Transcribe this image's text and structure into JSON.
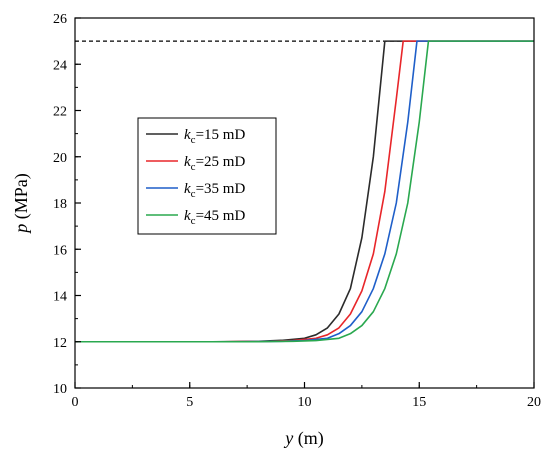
{
  "chart_data": {
    "type": "line",
    "xlabel": {
      "var": "y",
      "unit": " (m)"
    },
    "ylabel": {
      "var": "p",
      "unit": " (MPa)"
    },
    "xlim": [
      0,
      20
    ],
    "ylim": [
      10,
      26
    ],
    "xticks": [
      0,
      5,
      10,
      15,
      20
    ],
    "yticks": [
      10,
      12,
      14,
      16,
      18,
      20,
      22,
      24,
      26
    ],
    "grid": false,
    "legend_position": "left-center",
    "reference_line": {
      "y": 25,
      "style": "dashed",
      "color": "#000000"
    },
    "series": [
      {
        "name": {
          "var": "k",
          "sub": "c",
          "rest": "=15 mD"
        },
        "color": "#2b2b2b",
        "points": [
          [
            0,
            12
          ],
          [
            6,
            12
          ],
          [
            8,
            12.02
          ],
          [
            9,
            12.06
          ],
          [
            10,
            12.15
          ],
          [
            10.5,
            12.3
          ],
          [
            11,
            12.6
          ],
          [
            11.5,
            13.2
          ],
          [
            12,
            14.3
          ],
          [
            12.5,
            16.5
          ],
          [
            13,
            20
          ],
          [
            13.25,
            22.5
          ],
          [
            13.5,
            25
          ],
          [
            14,
            25
          ],
          [
            20,
            25
          ]
        ]
      },
      {
        "name": {
          "var": "k",
          "sub": "c",
          "rest": "=25 mD"
        },
        "color": "#e8262a",
        "points": [
          [
            0,
            12
          ],
          [
            6.5,
            12
          ],
          [
            8.5,
            12.02
          ],
          [
            9.5,
            12.05
          ],
          [
            10.5,
            12.15
          ],
          [
            11,
            12.3
          ],
          [
            11.5,
            12.6
          ],
          [
            12,
            13.2
          ],
          [
            12.5,
            14.2
          ],
          [
            13,
            15.8
          ],
          [
            13.5,
            18.5
          ],
          [
            14,
            22.5
          ],
          [
            14.3,
            25
          ],
          [
            14.8,
            25
          ],
          [
            20,
            25
          ]
        ]
      },
      {
        "name": {
          "var": "k",
          "sub": "c",
          "rest": "=35 mD"
        },
        "color": "#1f5fc9",
        "points": [
          [
            0,
            12
          ],
          [
            7,
            12
          ],
          [
            9,
            12.02
          ],
          [
            10,
            12.05
          ],
          [
            11,
            12.15
          ],
          [
            11.5,
            12.35
          ],
          [
            12,
            12.7
          ],
          [
            12.5,
            13.3
          ],
          [
            13,
            14.3
          ],
          [
            13.5,
            15.8
          ],
          [
            14,
            18
          ],
          [
            14.5,
            21.5
          ],
          [
            14.9,
            25
          ],
          [
            15.3,
            25
          ],
          [
            20,
            25
          ]
        ]
      },
      {
        "name": {
          "var": "k",
          "sub": "c",
          "rest": "=45 mD"
        },
        "color": "#2aa84f",
        "points": [
          [
            0,
            12
          ],
          [
            7.5,
            12
          ],
          [
            9.5,
            12.02
          ],
          [
            10.5,
            12.05
          ],
          [
            11.5,
            12.15
          ],
          [
            12,
            12.35
          ],
          [
            12.5,
            12.7
          ],
          [
            13,
            13.3
          ],
          [
            13.5,
            14.3
          ],
          [
            14,
            15.8
          ],
          [
            14.5,
            18
          ],
          [
            15,
            21.5
          ],
          [
            15.4,
            25
          ],
          [
            15.8,
            25
          ],
          [
            20,
            25
          ]
        ]
      }
    ]
  }
}
